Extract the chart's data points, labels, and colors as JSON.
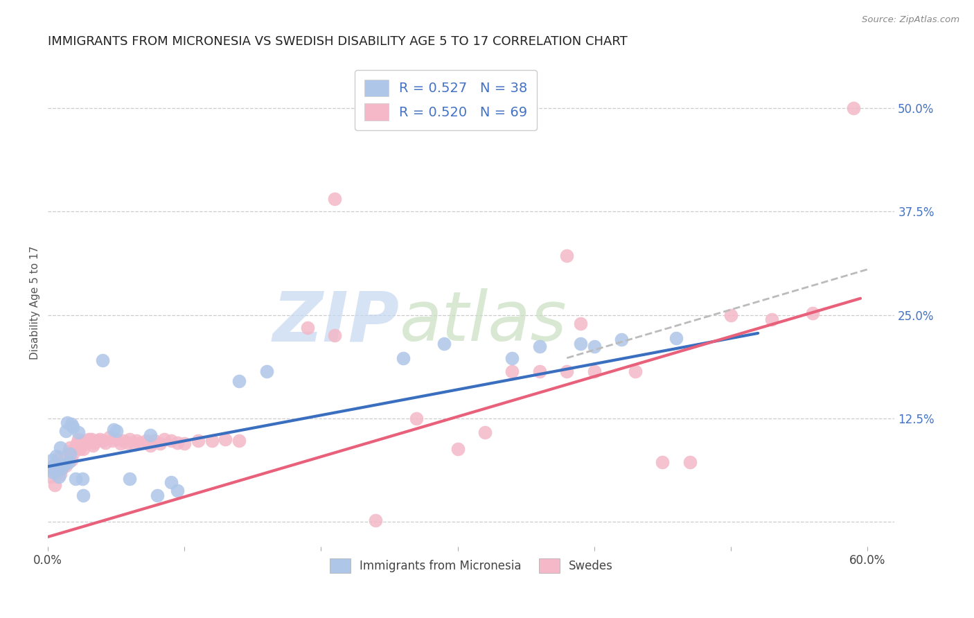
{
  "title": "IMMIGRANTS FROM MICRONESIA VS SWEDISH DISABILITY AGE 5 TO 17 CORRELATION CHART",
  "source": "Source: ZipAtlas.com",
  "ylabel": "Disability Age 5 to 17",
  "xlim": [
    0.0,
    0.62
  ],
  "ylim": [
    -0.03,
    0.56
  ],
  "xticks": [
    0.0,
    0.1,
    0.2,
    0.3,
    0.4,
    0.5,
    0.6
  ],
  "xticklabels": [
    "0.0%",
    "",
    "",
    "",
    "",
    "",
    "60.0%"
  ],
  "yticks_right": [
    0.0,
    0.125,
    0.25,
    0.375,
    0.5
  ],
  "yticklabels_right": [
    "",
    "12.5%",
    "25.0%",
    "37.5%",
    "50.0%"
  ],
  "legend_labels": [
    "Immigrants from Micronesia",
    "Swedes"
  ],
  "blue_color": "#aec6e8",
  "pink_color": "#f4b8c8",
  "blue_line_color": "#3a6ebf",
  "pink_line_color": "#e8607a",
  "dashed_line_color": "#bbbbbb",
  "scatter_blue": [
    [
      0.002,
      0.065
    ],
    [
      0.003,
      0.075
    ],
    [
      0.004,
      0.06
    ],
    [
      0.005,
      0.07
    ],
    [
      0.006,
      0.08
    ],
    [
      0.007,
      0.063
    ],
    [
      0.008,
      0.055
    ],
    [
      0.009,
      0.09
    ],
    [
      0.01,
      0.065
    ],
    [
      0.012,
      0.07
    ],
    [
      0.013,
      0.11
    ],
    [
      0.014,
      0.12
    ],
    [
      0.015,
      0.072
    ],
    [
      0.016,
      0.082
    ],
    [
      0.017,
      0.118
    ],
    [
      0.018,
      0.115
    ],
    [
      0.02,
      0.052
    ],
    [
      0.022,
      0.108
    ],
    [
      0.025,
      0.052
    ],
    [
      0.026,
      0.032
    ],
    [
      0.04,
      0.195
    ],
    [
      0.048,
      0.112
    ],
    [
      0.05,
      0.11
    ],
    [
      0.06,
      0.052
    ],
    [
      0.075,
      0.105
    ],
    [
      0.08,
      0.032
    ],
    [
      0.09,
      0.048
    ],
    [
      0.095,
      0.038
    ],
    [
      0.14,
      0.17
    ],
    [
      0.16,
      0.182
    ],
    [
      0.26,
      0.198
    ],
    [
      0.29,
      0.215
    ],
    [
      0.34,
      0.198
    ],
    [
      0.36,
      0.212
    ],
    [
      0.39,
      0.215
    ],
    [
      0.4,
      0.212
    ],
    [
      0.42,
      0.22
    ],
    [
      0.46,
      0.222
    ]
  ],
  "scatter_pink": [
    [
      0.002,
      0.055
    ],
    [
      0.003,
      0.062
    ],
    [
      0.004,
      0.068
    ],
    [
      0.005,
      0.045
    ],
    [
      0.006,
      0.06
    ],
    [
      0.007,
      0.072
    ],
    [
      0.008,
      0.078
    ],
    [
      0.009,
      0.058
    ],
    [
      0.01,
      0.065
    ],
    [
      0.011,
      0.07
    ],
    [
      0.012,
      0.075
    ],
    [
      0.013,
      0.068
    ],
    [
      0.014,
      0.08
    ],
    [
      0.015,
      0.085
    ],
    [
      0.016,
      0.09
    ],
    [
      0.017,
      0.075
    ],
    [
      0.018,
      0.082
    ],
    [
      0.02,
      0.09
    ],
    [
      0.021,
      0.095
    ],
    [
      0.022,
      0.1
    ],
    [
      0.023,
      0.088
    ],
    [
      0.024,
      0.092
    ],
    [
      0.025,
      0.096
    ],
    [
      0.026,
      0.088
    ],
    [
      0.027,
      0.095
    ],
    [
      0.028,
      0.098
    ],
    [
      0.03,
      0.1
    ],
    [
      0.032,
      0.1
    ],
    [
      0.033,
      0.092
    ],
    [
      0.034,
      0.096
    ],
    [
      0.036,
      0.098
    ],
    [
      0.038,
      0.1
    ],
    [
      0.04,
      0.098
    ],
    [
      0.042,
      0.096
    ],
    [
      0.045,
      0.102
    ],
    [
      0.047,
      0.098
    ],
    [
      0.05,
      0.1
    ],
    [
      0.053,
      0.095
    ],
    [
      0.055,
      0.098
    ],
    [
      0.058,
      0.096
    ],
    [
      0.06,
      0.1
    ],
    [
      0.063,
      0.095
    ],
    [
      0.065,
      0.098
    ],
    [
      0.068,
      0.096
    ],
    [
      0.072,
      0.098
    ],
    [
      0.075,
      0.092
    ],
    [
      0.078,
      0.098
    ],
    [
      0.082,
      0.095
    ],
    [
      0.085,
      0.1
    ],
    [
      0.09,
      0.098
    ],
    [
      0.095,
      0.096
    ],
    [
      0.1,
      0.095
    ],
    [
      0.11,
      0.098
    ],
    [
      0.12,
      0.098
    ],
    [
      0.13,
      0.1
    ],
    [
      0.14,
      0.098
    ],
    [
      0.19,
      0.235
    ],
    [
      0.21,
      0.225
    ],
    [
      0.24,
      0.002
    ],
    [
      0.27,
      0.125
    ],
    [
      0.3,
      0.088
    ],
    [
      0.32,
      0.108
    ],
    [
      0.34,
      0.182
    ],
    [
      0.36,
      0.182
    ],
    [
      0.38,
      0.182
    ],
    [
      0.39,
      0.24
    ],
    [
      0.4,
      0.182
    ],
    [
      0.43,
      0.182
    ],
    [
      0.45,
      0.072
    ],
    [
      0.47,
      0.072
    ],
    [
      0.5,
      0.25
    ],
    [
      0.53,
      0.245
    ],
    [
      0.56,
      0.252
    ],
    [
      0.59,
      0.5
    ],
    [
      0.38,
      0.322
    ],
    [
      0.21,
      0.39
    ]
  ],
  "blue_line_x": [
    0.0,
    0.52
  ],
  "blue_line_y": [
    0.067,
    0.228
  ],
  "pink_line_x": [
    0.0,
    0.595
  ],
  "pink_line_y": [
    -0.018,
    0.27
  ],
  "dashed_line_x": [
    0.38,
    0.6
  ],
  "dashed_line_y": [
    0.198,
    0.305
  ]
}
